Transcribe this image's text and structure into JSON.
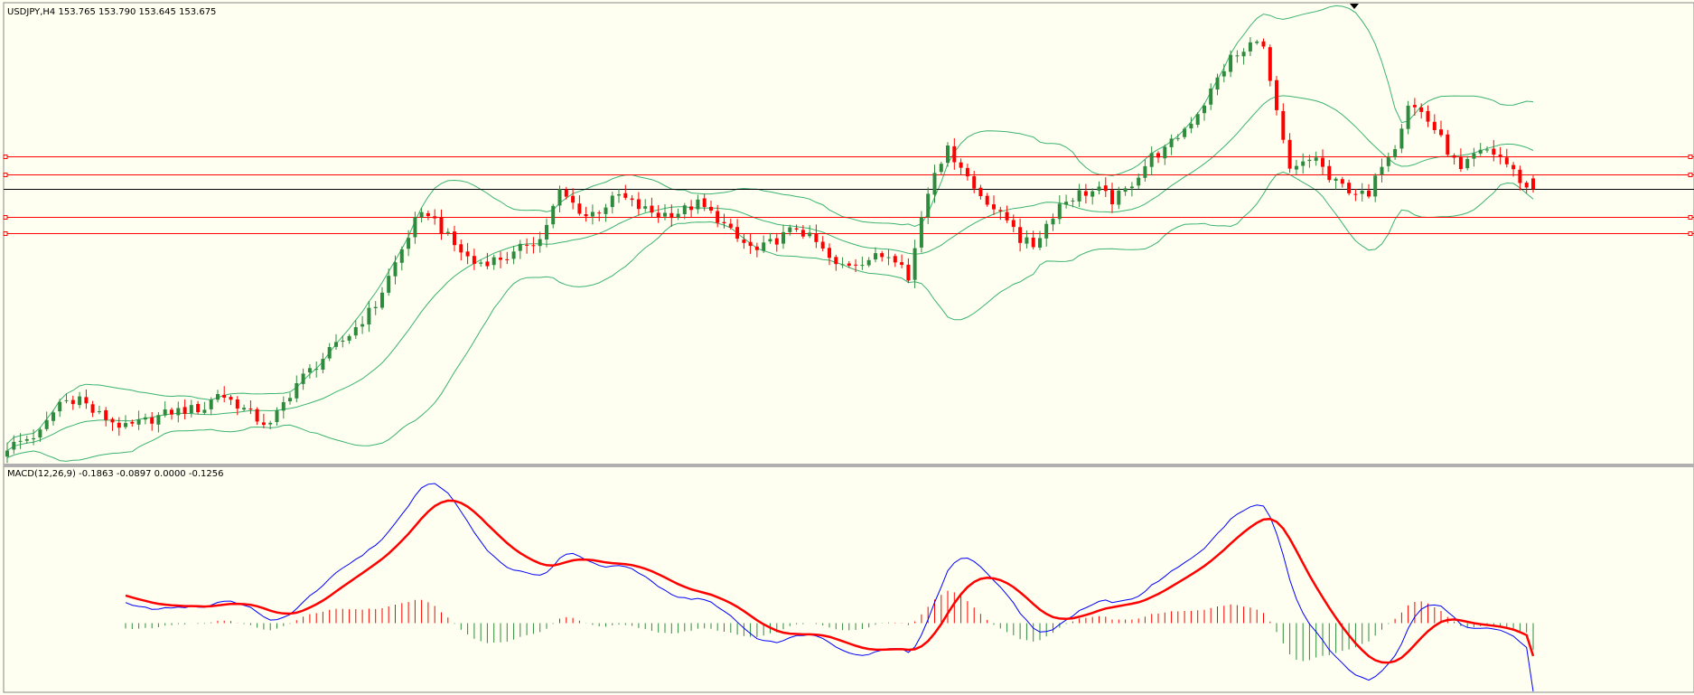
{
  "header": {
    "text": "USDJPY,H4  153.765 153.790 153.645 153.675"
  },
  "macd_label": {
    "text": "MACD(12,26,9) -0.1863 -0.0897 0.0000 -0.1256"
  },
  "colors": {
    "background": "#fefff0",
    "bull": "#2e8b3e",
    "bear": "#ff0000",
    "bands": "#3cb371",
    "level": "#ff0000",
    "current_price_line": "#000000",
    "macd_main": "#0000ff",
    "macd_signal": "#ff0000"
  },
  "chart_data": [
    {
      "type": "candlestick",
      "symbol": "USDJPY",
      "timeframe": "H4",
      "last_bar": {
        "open": 153.765,
        "high": 153.79,
        "low": 153.645,
        "close": 153.675
      },
      "indicators": [
        "Bollinger Bands"
      ],
      "level_lines": [
        153.95,
        153.8,
        153.44,
        153.3
      ],
      "current_price_line": 153.675,
      "price_range": [
        151.4,
        155.1
      ],
      "grid": false,
      "legend": "top-left",
      "approx_bar_count": 204
    },
    {
      "type": "macd",
      "params": [
        12,
        26,
        9
      ],
      "values": {
        "main": -0.1863,
        "signal": -0.0897,
        "histogram_positive": 0.0,
        "histogram_negative": -0.1256
      },
      "grid": false
    }
  ]
}
